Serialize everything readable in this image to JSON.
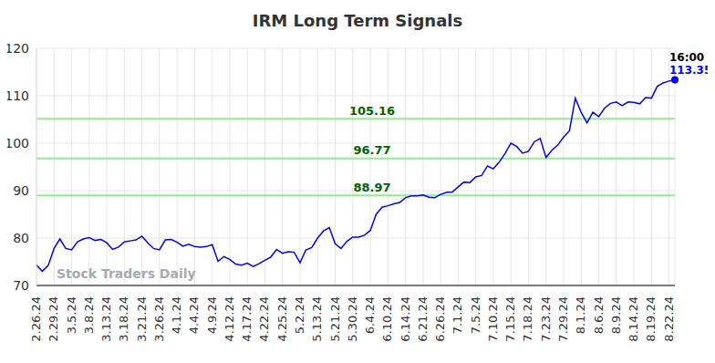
{
  "chart_data": {
    "type": "line",
    "title": "IRM Long Term Signals",
    "categories": [
      "2.26.24",
      null,
      null,
      "2.29.24",
      null,
      null,
      "3.5.24",
      null,
      null,
      "3.8.24",
      null,
      null,
      "3.13.24",
      null,
      null,
      "3.18.24",
      null,
      null,
      "3.21.24",
      null,
      null,
      "3.26.24",
      null,
      null,
      "4.1.24",
      null,
      null,
      "4.4.24",
      null,
      null,
      "4.9.24",
      null,
      null,
      "4.12.24",
      null,
      null,
      "4.17.24",
      null,
      null,
      "4.22.24",
      null,
      null,
      "4.25.24",
      null,
      null,
      "5.2.24",
      null,
      null,
      "5.13.24",
      null,
      null,
      "5.21.24",
      null,
      null,
      "5.30.24",
      null,
      null,
      "6.4.24",
      null,
      null,
      "6.10.24",
      null,
      null,
      "6.14.24",
      null,
      null,
      "6.21.24",
      null,
      null,
      "6.26.24",
      null,
      null,
      "7.1.24",
      null,
      null,
      "7.5.24",
      null,
      null,
      "7.10.24",
      null,
      null,
      "7.15.24",
      null,
      null,
      "7.18.24",
      null,
      null,
      "7.23.24",
      null,
      null,
      "7.29.24",
      null,
      null,
      "8.1.24",
      null,
      null,
      "8.6.24",
      null,
      null,
      "8.9.24",
      null,
      null,
      "8.14.24",
      null,
      null,
      "8.19.24",
      null,
      null,
      "8.22.24",
      null
    ],
    "values": [
      74.3,
      73.0,
      74.2,
      77.8,
      79.8,
      77.8,
      77.5,
      79.2,
      79.8,
      80.1,
      79.5,
      79.7,
      79.0,
      77.6,
      78.1,
      79.2,
      79.4,
      79.6,
      80.4,
      79.0,
      77.8,
      77.5,
      79.6,
      79.7,
      79.1,
      78.3,
      78.7,
      78.2,
      78.1,
      78.2,
      78.6,
      75.1,
      76.1,
      75.5,
      74.5,
      74.3,
      74.7,
      74.0,
      74.6,
      75.3,
      76.0,
      77.6,
      76.8,
      77.1,
      77.0,
      74.8,
      77.5,
      78.0,
      80.0,
      81.5,
      82.2,
      78.8,
      77.8,
      79.3,
      80.2,
      80.2,
      80.6,
      81.6,
      85.0,
      86.5,
      86.8,
      87.2,
      87.5,
      88.5,
      88.9,
      88.9,
      89.1,
      88.6,
      88.5,
      89.2,
      89.6,
      89.7,
      90.8,
      91.8,
      91.7,
      92.9,
      93.2,
      95.2,
      94.6,
      96.0,
      97.8,
      100.0,
      99.3,
      97.9,
      98.3,
      100.3,
      101.0,
      97.0,
      98.5,
      99.6,
      101.3,
      102.6,
      109.5,
      106.5,
      104.3,
      106.5,
      105.6,
      107.4,
      108.4,
      108.7,
      107.9,
      108.7,
      108.6,
      108.3,
      109.6,
      109.5,
      112.0,
      112.7,
      113.1,
      113.35
    ],
    "color": "#0000ff",
    "reference_lines": [
      105.16,
      96.77,
      88.97
    ],
    "annotations": [
      "16:00"
    ],
    "watermark": "Stock Traders Daily",
    "ylim": [
      70,
      120
    ],
    "yticks": [
      70,
      80,
      90,
      100,
      110,
      120
    ],
    "grid": true
  }
}
